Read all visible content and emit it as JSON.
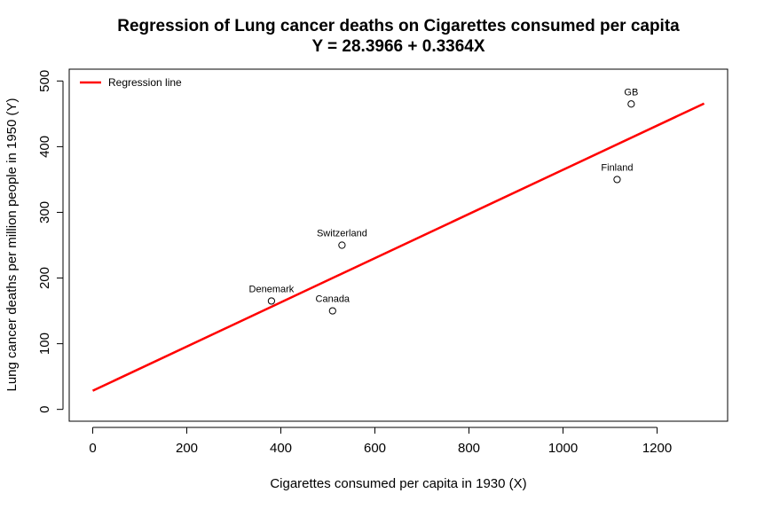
{
  "chart_data": {
    "type": "scatter",
    "title": "Regression of Lung cancer deaths on Cigarettes consumed per capita",
    "subtitle": "Y = 28.3966 + 0.3364X",
    "xlabel": "Cigarettes consumed per capita in 1930 (X)",
    "ylabel": "Lung cancer deaths per million people in 1950 (Y)",
    "xlim": [
      -50,
      1350
    ],
    "ylim": [
      -18,
      518
    ],
    "x_ticks": [
      0,
      200,
      400,
      600,
      800,
      1000,
      1200
    ],
    "y_ticks": [
      0,
      100,
      200,
      300,
      400,
      500
    ],
    "grid": false,
    "legend": {
      "position": "top-left",
      "entries": [
        {
          "label": "Regression line",
          "color": "#ff0000"
        }
      ]
    },
    "points": [
      {
        "label": "Denemark",
        "x": 380,
        "y": 165
      },
      {
        "label": "Canada",
        "x": 510,
        "y": 150
      },
      {
        "label": "Switzerland",
        "x": 530,
        "y": 250
      },
      {
        "label": "Finland",
        "x": 1115,
        "y": 350
      },
      {
        "label": "GB",
        "x": 1145,
        "y": 465
      }
    ],
    "regression": {
      "intercept": 28.3966,
      "slope": 0.3364,
      "x_range": [
        0,
        1300
      ],
      "color": "#ff0000"
    }
  }
}
